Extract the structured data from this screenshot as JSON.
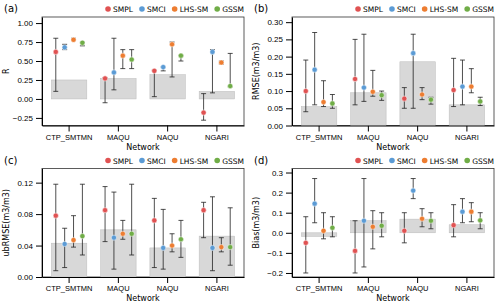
{
  "chart_data": [
    {
      "type": "bar",
      "title": "(a)",
      "x_label": "Network",
      "y_label": "R",
      "categories": [
        "CTP_SMTMN",
        "MAQU",
        "NAQU",
        "NGARI"
      ],
      "ylim": [
        -0.35,
        1.08
      ],
      "yticks": [
        {
          "value": -0.25,
          "label": "−0.25"
        },
        {
          "value": 0.0,
          "label": "0.00"
        },
        0.25,
        {
          "value": 0.5,
          "label": "0.50"
        },
        0.75,
        {
          "value": 1.0,
          "label": "1.00"
        }
      ],
      "legend": "upper right",
      "series": [
        {
          "type": "bar",
          "color": "#d8d8d8",
          "values": [
            0.25,
            0.27,
            0.32,
            0.1
          ]
        },
        {
          "name": "SMPL",
          "type": "scatter",
          "color": "#e05252",
          "values": [
            0.62,
            0.27,
            0.37,
            -0.18
          ],
          "error_low": [
            0.1,
            -0.05,
            0.03,
            -0.28
          ],
          "error_high": [
            0.8,
            0.28,
            0.38,
            0.07
          ]
        },
        {
          "name": "SMCI",
          "type": "scatter",
          "color": "#5b9bd5",
          "values": [
            0.68,
            0.35,
            0.42,
            0.62
          ],
          "error_low": [
            0.65,
            0.12,
            0.37,
            0.08
          ],
          "error_high": [
            0.72,
            0.8,
            0.42,
            0.65
          ]
        },
        {
          "name": "LHS-SM",
          "type": "scatter",
          "color": "#ed7d31",
          "values": [
            0.78,
            0.57,
            0.72,
            0.48
          ],
          "error_low": [
            0.77,
            0.4,
            0.29,
            0.46
          ],
          "error_high": [
            0.8,
            0.65,
            0.75,
            0.5
          ]
        },
        {
          "name": "GSSM",
          "type": "scatter",
          "color": "#70ad47",
          "values": [
            0.74,
            0.52,
            0.57,
            0.17
          ],
          "error_low": [
            0.7,
            0.4,
            0.5,
            0.16
          ],
          "error_high": [
            0.75,
            0.65,
            0.57,
            0.6
          ]
        }
      ]
    },
    {
      "type": "bar",
      "title": "(b)",
      "x_label": "Network",
      "y_label": "RMSE(m3/m3)",
      "categories": [
        "CTP_SMTMN",
        "MAQU",
        "NAQU",
        "NGARI"
      ],
      "ylim": [
        0.0,
        0.315
      ],
      "yticks": [
        {
          "value": 0.0,
          "label": "0.00"
        },
        0.05,
        {
          "value": 0.1,
          "label": "0.10"
        },
        0.15,
        {
          "value": 0.2,
          "label": "0.20"
        },
        0.25,
        {
          "value": 0.3,
          "label": "0.30"
        }
      ],
      "legend": "upper right",
      "series": [
        {
          "type": "bar",
          "color": "#d8d8d8",
          "values": [
            0.055,
            0.095,
            0.185,
            0.06
          ]
        },
        {
          "name": "SMPL",
          "type": "scatter",
          "color": "#e05252",
          "values": [
            0.1,
            0.135,
            0.078,
            0.103
          ],
          "error_low": [
            0.04,
            0.06,
            0.05,
            0.055
          ],
          "error_high": [
            0.19,
            0.25,
            0.11,
            0.195
          ]
        },
        {
          "name": "SMCI",
          "type": "scatter",
          "color": "#5b9bd5",
          "values": [
            0.162,
            0.11,
            0.21,
            0.113
          ],
          "error_low": [
            0.06,
            0.07,
            0.05,
            0.06
          ],
          "error_high": [
            0.27,
            0.265,
            0.265,
            0.19
          ]
        },
        {
          "name": "LHS-SM",
          "type": "scatter",
          "color": "#ed7d31",
          "values": [
            0.068,
            0.098,
            0.09,
            0.113
          ],
          "error_low": [
            0.055,
            0.085,
            0.075,
            0.095
          ],
          "error_high": [
            0.13,
            0.16,
            0.11,
            0.165
          ]
        },
        {
          "name": "GSSM",
          "type": "scatter",
          "color": "#70ad47",
          "values": [
            0.064,
            0.088,
            0.075,
            0.07
          ],
          "error_low": [
            0.05,
            0.073,
            0.062,
            0.058
          ],
          "error_high": [
            0.09,
            0.1,
            0.082,
            0.082
          ]
        }
      ]
    },
    {
      "type": "bar",
      "title": "(c)",
      "x_label": "Network",
      "y_label": "ubRMSE(m3/m3)",
      "categories": [
        "CTP_SMTMN",
        "MAQU",
        "NAQU",
        "NGARI"
      ],
      "ylim": [
        0.0,
        0.138
      ],
      "yticks": [
        {
          "value": 0.0,
          "label": "0.00"
        },
        0.04,
        0.08,
        0.12
      ],
      "legend": "upper right",
      "series": [
        {
          "type": "bar",
          "color": "#d8d8d8",
          "values": [
            0.043,
            0.06,
            0.037,
            0.052
          ]
        },
        {
          "name": "SMPL",
          "type": "scatter",
          "color": "#e05252",
          "values": [
            0.078,
            0.085,
            0.072,
            0.085
          ],
          "error_low": [
            0.008,
            0.045,
            0.012,
            0.05
          ],
          "error_high": [
            0.118,
            0.115,
            0.1,
            0.095
          ]
        },
        {
          "name": "SMCI",
          "type": "scatter",
          "color": "#5b9bd5",
          "values": [
            0.042,
            0.05,
            0.037,
            0.037
          ],
          "error_low": [
            0.012,
            0.01,
            0.01,
            0.008
          ],
          "error_high": [
            0.062,
            0.108,
            0.086,
            0.102
          ]
        },
        {
          "name": "LHS-SM",
          "type": "scatter",
          "color": "#ed7d31",
          "values": [
            0.047,
            0.055,
            0.04,
            0.038
          ],
          "error_low": [
            0.038,
            0.048,
            0.032,
            0.032
          ],
          "error_high": [
            0.078,
            0.072,
            0.055,
            0.05
          ]
        },
        {
          "name": "GSSM",
          "type": "scatter",
          "color": "#70ad47",
          "values": [
            0.052,
            0.055,
            0.048,
            0.038
          ],
          "error_low": [
            0.028,
            0.028,
            0.025,
            0.015
          ],
          "error_high": [
            0.118,
            0.118,
            0.072,
            0.088
          ]
        }
      ]
    },
    {
      "type": "bar",
      "title": "(d)",
      "x_label": "Network",
      "y_label": "Bias(m3/m3)",
      "categories": [
        "CTP_SMTMN",
        "MAQU",
        "NAQU",
        "NGARI"
      ],
      "ylim": [
        -0.22,
        0.32
      ],
      "yticks": [
        {
          "value": -0.2,
          "label": "−0.2"
        },
        {
          "value": -0.1,
          "label": "−0.1"
        },
        {
          "value": 0.0,
          "label": "0.0"
        },
        0.1,
        0.2,
        0.3
      ],
      "legend": "upper right",
      "series": [
        {
          "type": "bar",
          "color": "#d8d8d8",
          "values": [
            -0.018,
            0.06,
            0.068,
            0.04
          ]
        },
        {
          "name": "SMPL",
          "type": "scatter",
          "color": "#e05252",
          "values": [
            -0.05,
            -0.09,
            0.01,
            0.038
          ],
          "error_low": [
            -0.2,
            -0.2,
            -0.05,
            -0.02
          ],
          "error_high": [
            0.08,
            0.06,
            0.1,
            0.14
          ]
        },
        {
          "name": "SMCI",
          "type": "scatter",
          "color": "#5b9bd5",
          "values": [
            0.145,
            0.06,
            0.21,
            0.105
          ],
          "error_low": [
            0.05,
            -0.17,
            0.17,
            0.05
          ],
          "error_high": [
            0.27,
            0.27,
            0.27,
            0.17
          ]
        },
        {
          "name": "LHS-SM",
          "type": "scatter",
          "color": "#ed7d31",
          "values": [
            0.01,
            0.03,
            0.07,
            0.105
          ],
          "error_low": [
            -0.03,
            -0.08,
            0.03,
            0.055
          ],
          "error_high": [
            0.1,
            0.11,
            0.12,
            0.15
          ]
        },
        {
          "name": "GSSM",
          "type": "scatter",
          "color": "#70ad47",
          "values": [
            0.025,
            0.035,
            0.06,
            0.062
          ],
          "error_low": [
            -0.02,
            -0.02,
            0.02,
            0.02
          ],
          "error_high": [
            0.08,
            0.1,
            0.1,
            0.1
          ]
        }
      ]
    }
  ]
}
